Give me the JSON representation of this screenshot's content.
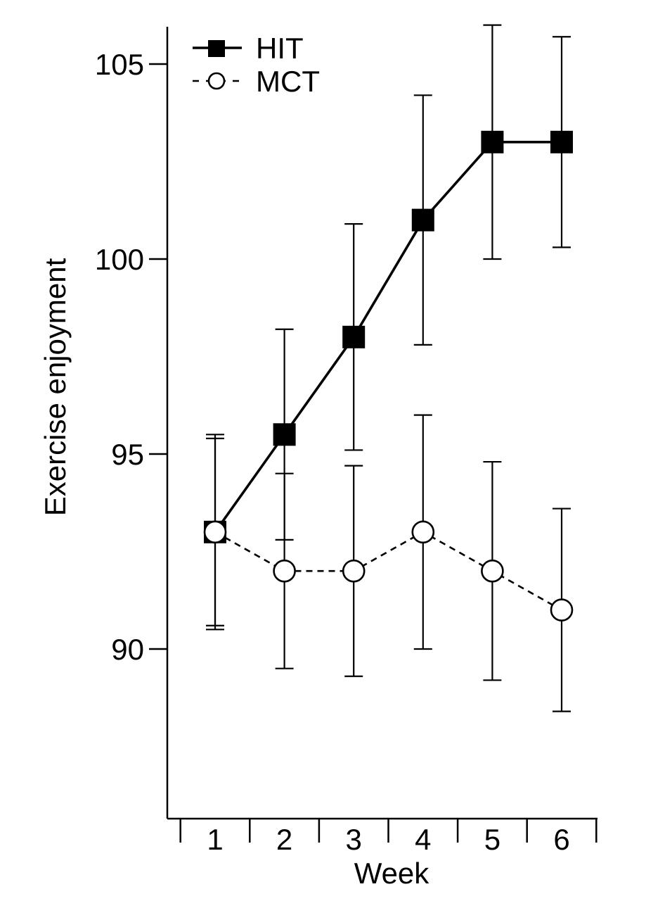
{
  "chart_data": {
    "type": "line",
    "title": "",
    "xlabel": "Week",
    "ylabel": "Exercise enjoyment",
    "x": [
      1,
      2,
      3,
      4,
      5,
      6
    ],
    "xlim": [
      0.5,
      6.5
    ],
    "ylim": [
      85.7,
      106
    ],
    "yticks": [
      90,
      95,
      100,
      105
    ],
    "grid": false,
    "legend_position": "top-left",
    "error_bars": true,
    "series": [
      {
        "name": "HIT",
        "marker": "filled-square",
        "line_style": "solid",
        "values": [
          93.0,
          95.5,
          98.0,
          101.0,
          103.0,
          103.0
        ],
        "error_low": [
          90.6,
          92.8,
          95.1,
          97.8,
          100.0,
          100.3
        ],
        "error_high": [
          95.4,
          98.2,
          100.9,
          104.2,
          106.0,
          105.7
        ]
      },
      {
        "name": "MCT",
        "marker": "open-circle",
        "line_style": "dashed",
        "values": [
          93.0,
          92.0,
          92.0,
          93.0,
          92.0,
          91.0
        ],
        "error_low": [
          90.5,
          89.5,
          89.3,
          90.0,
          89.2,
          88.4
        ],
        "error_high": [
          95.5,
          94.5,
          94.7,
          96.0,
          94.8,
          93.6
        ]
      }
    ],
    "colors": {
      "line": "#000000",
      "background": "#ffffff",
      "open_marker_fill": "#ffffff"
    }
  }
}
